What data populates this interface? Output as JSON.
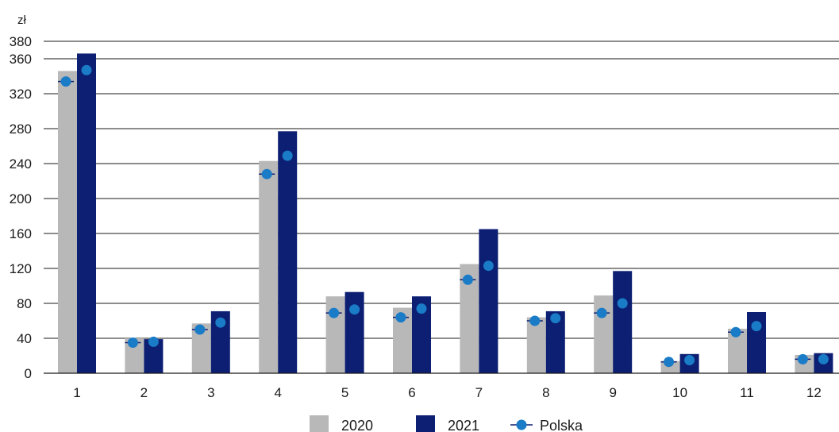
{
  "chart_data": {
    "type": "bar",
    "ylabel": "zł",
    "ylim": [
      0,
      380
    ],
    "yticks": [
      0,
      40,
      80,
      120,
      160,
      200,
      240,
      280,
      320,
      360,
      380
    ],
    "grid": true,
    "legend_position": "bottom",
    "categories": [
      "1",
      "2",
      "3",
      "4",
      "5",
      "6",
      "7",
      "8",
      "9",
      "10",
      "11",
      "12"
    ],
    "series": [
      {
        "name": "2020",
        "kind": "bar",
        "color": "#b8b8b8",
        "values": [
          346,
          40,
          57,
          243,
          88,
          75,
          125,
          64,
          89,
          14,
          51,
          21
        ]
      },
      {
        "name": "2021",
        "kind": "bar",
        "color": "#0c1f72",
        "values": [
          366,
          39,
          71,
          277,
          93,
          88,
          165,
          71,
          117,
          22,
          70,
          23
        ]
      }
    ],
    "markers": {
      "name": "Polska",
      "color": "#1a7bc7",
      "line_color": "#0c1f72",
      "values_2020": [
        334,
        35,
        50,
        228,
        69,
        64,
        107,
        60,
        69,
        13,
        47,
        16
      ],
      "values_2021": [
        347,
        36,
        58,
        249,
        73,
        74,
        123,
        63,
        80,
        15,
        54,
        16
      ]
    }
  }
}
